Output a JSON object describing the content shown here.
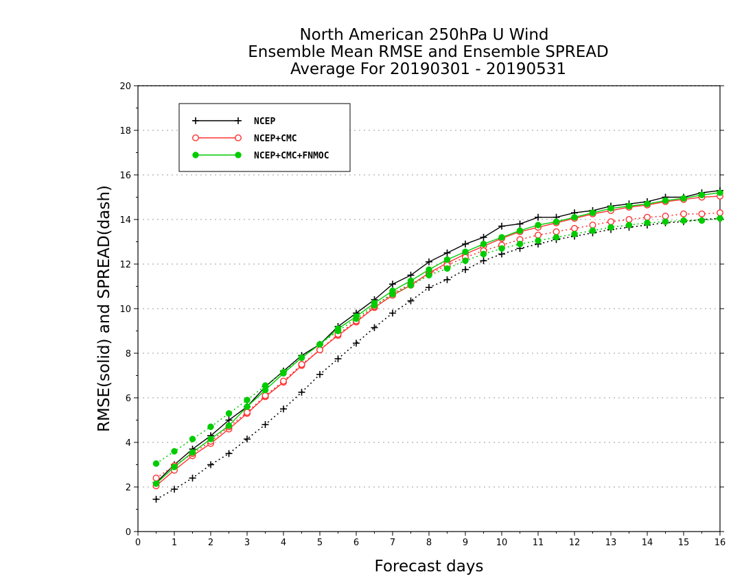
{
  "chart_data": {
    "type": "line",
    "title_lines": [
      "North American 250hPa U Wind",
      "Ensemble Mean RMSE and Ensemble SPREAD",
      "Average For 20190301 - 20190531"
    ],
    "xlabel": "Forecast days",
    "ylabel": "RMSE(solid) and SPREAD(dash)",
    "xlim": [
      0,
      16
    ],
    "ylim": [
      0,
      20
    ],
    "x_ticks": [
      0,
      1,
      2,
      3,
      4,
      5,
      6,
      7,
      8,
      9,
      10,
      11,
      12,
      13,
      14,
      15,
      16
    ],
    "y_ticks": [
      0,
      2,
      4,
      6,
      8,
      10,
      12,
      14,
      16,
      18,
      20
    ],
    "grid": "horizontal dotted",
    "legend_position": "top-left",
    "x": [
      0.5,
      1,
      1.5,
      2,
      2.5,
      3,
      3.5,
      4,
      4.5,
      5,
      5.5,
      6,
      6.5,
      7,
      7.5,
      8,
      8.5,
      9,
      9.5,
      10,
      10.5,
      11,
      11.5,
      12,
      12.5,
      13,
      13.5,
      14,
      14.5,
      15,
      15.5,
      16
    ],
    "series": [
      {
        "name": "NCEP",
        "color": "#000000",
        "marker": "plus",
        "rmse": [
          2.2,
          3.0,
          3.7,
          4.3,
          5.0,
          5.6,
          6.5,
          7.2,
          7.9,
          8.4,
          9.2,
          9.8,
          10.4,
          11.1,
          11.5,
          12.1,
          12.5,
          12.9,
          13.2,
          13.7,
          13.8,
          14.1,
          14.1,
          14.3,
          14.4,
          14.6,
          14.7,
          14.8,
          15.0,
          15.0,
          15.2,
          15.3
        ],
        "spread": [
          1.45,
          1.9,
          2.4,
          3.0,
          3.5,
          4.15,
          4.8,
          5.5,
          6.25,
          7.05,
          7.75,
          8.45,
          9.15,
          9.8,
          10.35,
          10.95,
          11.3,
          11.75,
          12.15,
          12.45,
          12.7,
          12.9,
          13.1,
          13.25,
          13.4,
          13.55,
          13.65,
          13.75,
          13.85,
          13.9,
          14.0,
          14.05
        ]
      },
      {
        "name": "NCEP+CMC",
        "color": "#ff3030",
        "marker": "open-circle",
        "rmse": [
          2.05,
          2.75,
          3.4,
          3.95,
          4.6,
          5.3,
          6.05,
          6.7,
          7.45,
          8.15,
          8.8,
          9.4,
          10.05,
          10.6,
          11.05,
          11.6,
          12.05,
          12.45,
          12.8,
          13.15,
          13.45,
          13.65,
          13.85,
          14.05,
          14.25,
          14.4,
          14.55,
          14.65,
          14.8,
          14.9,
          15.0,
          15.05
        ],
        "spread": [
          2.4,
          2.95,
          3.5,
          4.05,
          4.7,
          5.35,
          6.1,
          6.75,
          7.5,
          8.15,
          8.85,
          9.45,
          10.1,
          10.7,
          11.1,
          11.55,
          11.95,
          12.3,
          12.6,
          12.85,
          13.1,
          13.3,
          13.45,
          13.6,
          13.75,
          13.9,
          14.0,
          14.1,
          14.15,
          14.25,
          14.25,
          14.3
        ]
      },
      {
        "name": "NCEP+CMC+FNMOC",
        "color": "#00cc00",
        "marker": "filled-circle",
        "rmse": [
          2.15,
          2.9,
          3.55,
          4.15,
          4.75,
          5.6,
          6.35,
          7.1,
          7.8,
          8.4,
          9.1,
          9.65,
          10.25,
          10.8,
          11.25,
          11.75,
          12.2,
          12.55,
          12.9,
          13.2,
          13.5,
          13.75,
          13.9,
          14.1,
          14.3,
          14.5,
          14.6,
          14.7,
          14.85,
          14.95,
          15.1,
          15.2
        ],
        "spread": [
          3.05,
          3.6,
          4.15,
          4.7,
          5.3,
          5.9,
          6.55,
          7.15,
          7.8,
          8.4,
          9.0,
          9.55,
          10.15,
          10.65,
          11.05,
          11.5,
          11.8,
          12.15,
          12.45,
          12.7,
          12.9,
          13.05,
          13.2,
          13.35,
          13.5,
          13.65,
          13.75,
          13.85,
          13.9,
          13.95,
          13.95,
          14.05
        ]
      }
    ]
  }
}
